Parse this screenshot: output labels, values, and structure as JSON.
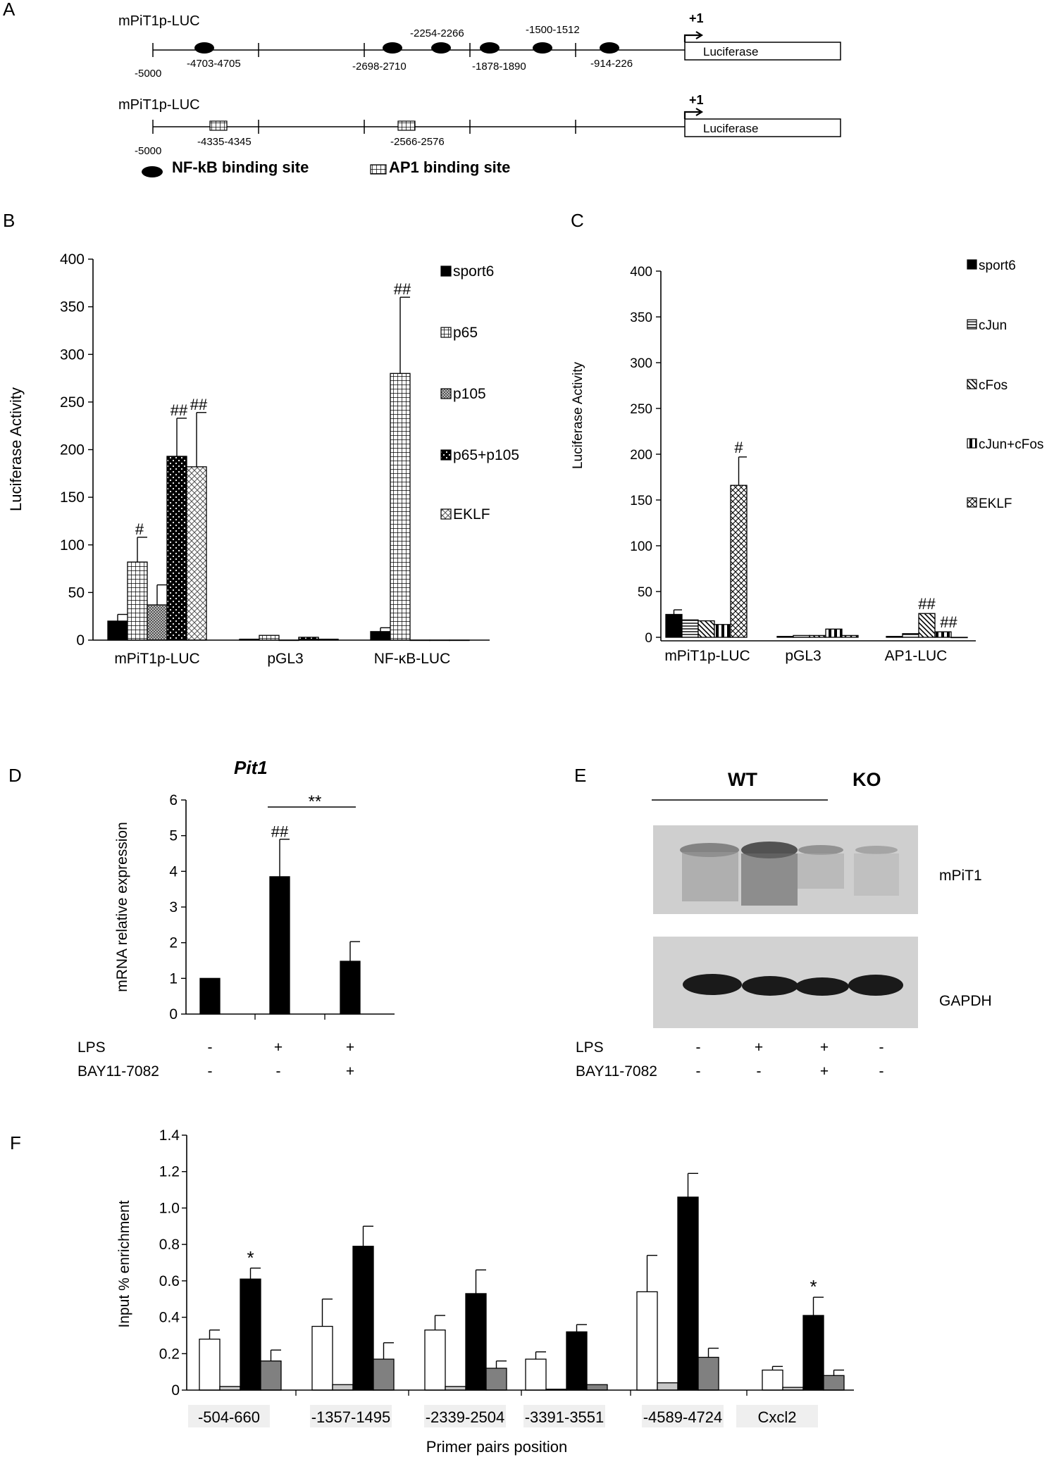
{
  "panels": {
    "A": "A",
    "B": "B",
    "C": "C",
    "D": "D",
    "E": "E",
    "F": "F"
  },
  "panelA": {
    "construct1": "mPiT1p-LUC",
    "construct2": "mPiT1p-LUC",
    "tss": "+1",
    "reporter": "Luciferase",
    "start": "-5000",
    "nfkb_sites": [
      "-4703-4705",
      "-2698-2710",
      "-2254-2266",
      "-1878-1890",
      "-1500-1512",
      "-914-226"
    ],
    "ap1_sites": [
      "-4335-4345",
      "-2566-2576"
    ],
    "legend_nfkb": "NF-kB binding site",
    "legend_ap1": "AP1 binding site"
  },
  "chart_data": [
    {
      "panel": "B",
      "type": "bar",
      "ylabel": "Luciferase Activity",
      "ylim": [
        0,
        400
      ],
      "yticks": [
        "0",
        "50",
        "100",
        "150",
        "200",
        "250",
        "300",
        "350",
        "400"
      ],
      "categories": [
        "mPiT1p-LUC",
        "pGL3",
        "NF-κB-LUC"
      ],
      "series": [
        {
          "name": "sport6",
          "values": [
            20,
            1,
            9
          ],
          "errors": [
            7,
            0,
            4
          ],
          "sig": [
            "",
            "",
            ""
          ]
        },
        {
          "name": "p65",
          "values": [
            82,
            5,
            280
          ],
          "errors": [
            26,
            0,
            80
          ],
          "sig": [
            "#",
            "",
            "##"
          ]
        },
        {
          "name": "p105",
          "values": [
            37,
            0,
            0
          ],
          "errors": [
            21,
            0,
            0
          ],
          "sig": [
            "",
            "",
            ""
          ]
        },
        {
          "name": "p65+p105",
          "values": [
            193,
            3,
            0
          ],
          "errors": [
            40,
            0,
            0
          ],
          "sig": [
            "##",
            "",
            ""
          ]
        },
        {
          "name": "EKLF",
          "values": [
            182,
            1,
            0
          ],
          "errors": [
            57,
            0,
            0
          ],
          "sig": [
            "##",
            "",
            ""
          ]
        }
      ]
    },
    {
      "panel": "C",
      "type": "bar",
      "ylabel": "Luciferase Activity",
      "ylim": [
        0,
        400
      ],
      "yticks": [
        "0",
        "50",
        "100",
        "150",
        "200",
        "250",
        "300",
        "350",
        "400"
      ],
      "categories": [
        "mPiT1p-LUC",
        "pGL3",
        "AP1-LUC"
      ],
      "series": [
        {
          "name": "sport6",
          "values": [
            25,
            1,
            1
          ],
          "errors": [
            5,
            0,
            0
          ],
          "sig": [
            "",
            "",
            ""
          ]
        },
        {
          "name": "cJun",
          "values": [
            19,
            2,
            4
          ],
          "errors": [
            0,
            0,
            0
          ],
          "sig": [
            "",
            "",
            ""
          ]
        },
        {
          "name": "cFos",
          "values": [
            18,
            2,
            26
          ],
          "errors": [
            0,
            0,
            0
          ],
          "sig": [
            "",
            "",
            "##"
          ]
        },
        {
          "name": "cJun+cFos",
          "values": [
            14,
            9,
            6
          ],
          "errors": [
            0,
            0,
            0
          ],
          "sig": [
            "",
            "",
            "##"
          ]
        },
        {
          "name": "EKLF",
          "values": [
            166,
            2,
            0
          ],
          "errors": [
            31,
            0,
            0
          ],
          "sig": [
            "#",
            "",
            ""
          ]
        }
      ]
    },
    {
      "panel": "D",
      "type": "bar",
      "title": "Pit1",
      "ylabel": "mRNA relative expression",
      "ylim": [
        0,
        6
      ],
      "yticks": [
        "0",
        "1",
        "2",
        "3",
        "4",
        "5",
        "6"
      ],
      "values": [
        1.0,
        3.85,
        1.48
      ],
      "errors": [
        0,
        1.05,
        0.55
      ],
      "sig": [
        "",
        "##",
        ""
      ],
      "bracket_label": "**",
      "rows": [
        {
          "label": "LPS",
          "marks": [
            "-",
            "+",
            "+"
          ]
        },
        {
          "label": "BAY11-7082",
          "marks": [
            "-",
            "-",
            "+"
          ]
        }
      ]
    },
    {
      "panel": "F",
      "type": "bar",
      "ylabel": "Input % enrichment",
      "xlabel": "Primer pairs position",
      "ylim": [
        0,
        1.4
      ],
      "yticks": [
        "0",
        "0.2",
        "0.4",
        "0.6",
        "0.8",
        "1.0",
        "1.2",
        "1.4"
      ],
      "categories": [
        "-504-660",
        "-1357-1495",
        "-2339-2504",
        "-3391-3551",
        "-4589-4724",
        "Cxcl2"
      ],
      "series": [
        {
          "values": [
            0.28,
            0.35,
            0.33,
            0.17,
            0.54,
            0.11
          ],
          "errors": [
            0.05,
            0.15,
            0.08,
            0.04,
            0.2,
            0.02
          ],
          "color": "#ffffff"
        },
        {
          "values": [
            0.02,
            0.03,
            0.02,
            0.005,
            0.04,
            0.015
          ],
          "errors": [
            0,
            0,
            0,
            0,
            0,
            0
          ],
          "color": "#c8c8c8"
        },
        {
          "values": [
            0.61,
            0.79,
            0.53,
            0.32,
            1.06,
            0.41
          ],
          "errors": [
            0.06,
            0.11,
            0.13,
            0.04,
            0.13,
            0.1
          ],
          "color": "#000000"
        },
        {
          "values": [
            0.16,
            0.17,
            0.12,
            0.03,
            0.18,
            0.08
          ],
          "errors": [
            0.06,
            0.09,
            0.04,
            0,
            0.05,
            0.03
          ],
          "color": "#808080"
        }
      ],
      "sig": [
        "*",
        "",
        "",
        "",
        "",
        "*"
      ]
    }
  ],
  "panelE": {
    "group_wt": "WT",
    "group_ko": "KO",
    "band1": "mPiT1",
    "band2": "GAPDH",
    "rows": [
      {
        "label": "LPS",
        "marks": [
          "-",
          "+",
          "+",
          "-"
        ]
      },
      {
        "label": "BAY11-7082",
        "marks": [
          "-",
          "-",
          "+",
          "-"
        ]
      }
    ]
  }
}
